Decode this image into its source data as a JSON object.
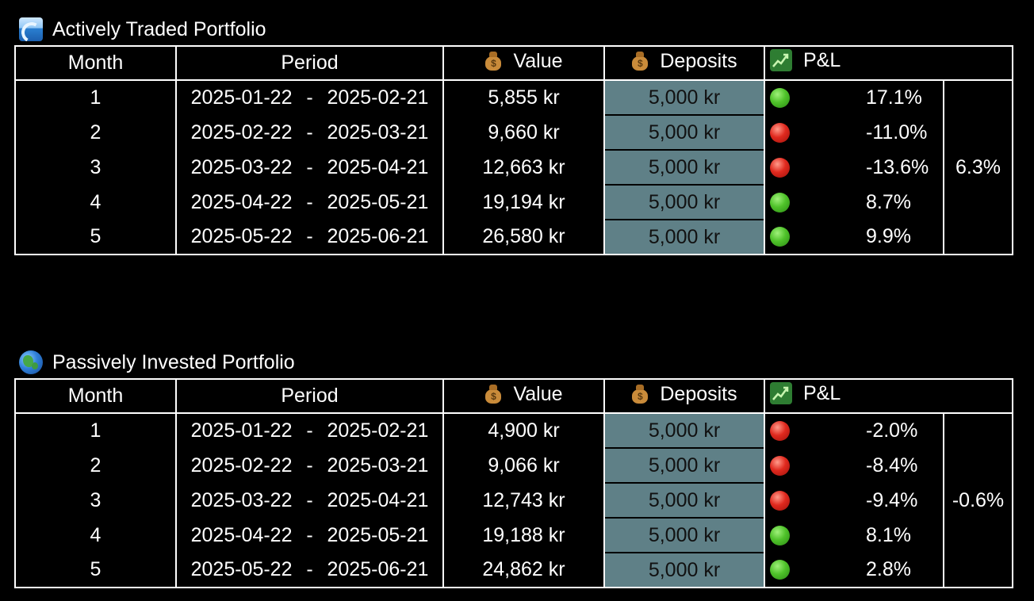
{
  "columns": {
    "month": "Month",
    "period": "Period",
    "value": "Value",
    "deposits": "Deposits",
    "pnl": "P&L"
  },
  "icons": {
    "value": "money-bag-icon",
    "deposits": "money-bag-icon",
    "pnl": "chart-increasing-icon"
  },
  "period_separator": "-",
  "colors": {
    "background": "#000000",
    "deposit_cell": "#5f8087",
    "positive": "#4fc22a",
    "negative": "#e0291e"
  },
  "active": {
    "title": "Actively Traded Portfolio",
    "icon": "wave-icon",
    "total": "6.3%",
    "rows": [
      {
        "month": "1",
        "start": "2025-01-22",
        "end": "2025-02-21",
        "value": "5,855 kr",
        "deposits": "5,000 kr",
        "status": "green",
        "pnl": "17.1%"
      },
      {
        "month": "2",
        "start": "2025-02-22",
        "end": "2025-03-21",
        "value": "9,660 kr",
        "deposits": "5,000 kr",
        "status": "red",
        "pnl": "-11.0%"
      },
      {
        "month": "3",
        "start": "2025-03-22",
        "end": "2025-04-21",
        "value": "12,663 kr",
        "deposits": "5,000 kr",
        "status": "red",
        "pnl": "-13.6%"
      },
      {
        "month": "4",
        "start": "2025-04-22",
        "end": "2025-05-21",
        "value": "19,194 kr",
        "deposits": "5,000 kr",
        "status": "green",
        "pnl": "8.7%"
      },
      {
        "month": "5",
        "start": "2025-05-22",
        "end": "2025-06-21",
        "value": "26,580 kr",
        "deposits": "5,000 kr",
        "status": "green",
        "pnl": "9.9%"
      }
    ]
  },
  "passive": {
    "title": "Passively Invested Portfolio",
    "icon": "globe-icon",
    "total": "-0.6%",
    "rows": [
      {
        "month": "1",
        "start": "2025-01-22",
        "end": "2025-02-21",
        "value": "4,900 kr",
        "deposits": "5,000 kr",
        "status": "red",
        "pnl": "-2.0%"
      },
      {
        "month": "2",
        "start": "2025-02-22",
        "end": "2025-03-21",
        "value": "9,066 kr",
        "deposits": "5,000 kr",
        "status": "red",
        "pnl": "-8.4%"
      },
      {
        "month": "3",
        "start": "2025-03-22",
        "end": "2025-04-21",
        "value": "12,743 kr",
        "deposits": "5,000 kr",
        "status": "red",
        "pnl": "-9.4%"
      },
      {
        "month": "4",
        "start": "2025-04-22",
        "end": "2025-05-21",
        "value": "19,188 kr",
        "deposits": "5,000 kr",
        "status": "green",
        "pnl": "8.1%"
      },
      {
        "month": "5",
        "start": "2025-05-22",
        "end": "2025-06-21",
        "value": "24,862 kr",
        "deposits": "5,000 kr",
        "status": "green",
        "pnl": "2.8%"
      }
    ]
  }
}
